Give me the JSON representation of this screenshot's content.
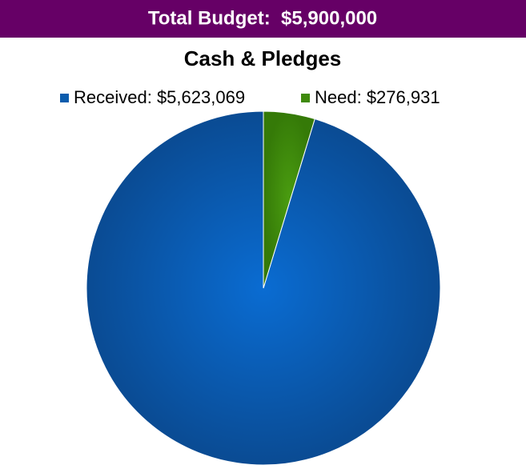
{
  "header": {
    "title": "Total Budget:  $5,900,000"
  },
  "chart_data": {
    "type": "pie",
    "title": "Cash & Pledges",
    "categories": [
      "Received: $5,623,069",
      "Need: $276,931"
    ],
    "values": [
      5623069,
      276931
    ],
    "colors": [
      "#0b5cad",
      "#3f8a0c"
    ],
    "legend": "top"
  }
}
